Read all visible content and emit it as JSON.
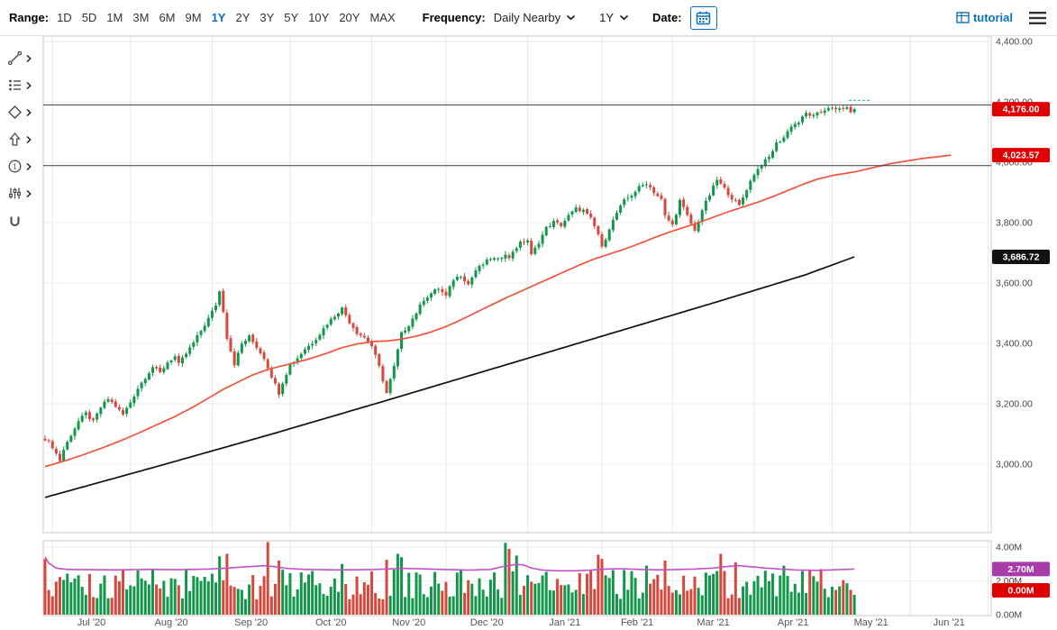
{
  "toolbar": {
    "range_label": "Range:",
    "ranges": [
      "1D",
      "5D",
      "1M",
      "3M",
      "6M",
      "9M",
      "1Y",
      "2Y",
      "3Y",
      "5Y",
      "10Y",
      "20Y",
      "MAX"
    ],
    "active_range": "1Y",
    "frequency_label": "Frequency:",
    "frequency_value": "Daily Nearby",
    "period_dropdown_value": "1Y",
    "date_label": "Date:",
    "brand_label": "tutorial",
    "accent_color": "#0a6ebd"
  },
  "drawing_tools": [
    {
      "icon": "trendline-icon"
    },
    {
      "icon": "study-list-icon"
    },
    {
      "icon": "shapes-icon"
    },
    {
      "icon": "arrow-icon"
    },
    {
      "icon": "number-annotation-icon"
    },
    {
      "icon": "sliders-icon"
    },
    {
      "icon": "magnet-icon"
    }
  ],
  "chart_data": {
    "type": "candlestick",
    "x_axis": {
      "labels": [
        "Jul '20",
        "Aug '20",
        "Sep '20",
        "Oct '20",
        "Nov '20",
        "Dec '20",
        "Jan '21",
        "Feb '21",
        "Mar '21",
        "Apr '21",
        "May '21",
        "Jun '21"
      ],
      "month_start_days": [
        2,
        23,
        45,
        66,
        88,
        108,
        130,
        150,
        169,
        191,
        212,
        233,
        254
      ],
      "total_days": 219
    },
    "price_axis": {
      "tick_labels": [
        "4,400.00",
        "4,200.00",
        "4,000.00",
        "3,800.00",
        "3,600.00",
        "3,400.00",
        "3,200.00",
        "3,000.00"
      ],
      "tick_values": [
        4400,
        4200,
        4000,
        3800,
        3600,
        3400,
        3200,
        3000
      ]
    },
    "volume_axis": {
      "tick_labels": [
        "4.00M",
        "2.00M",
        "0.00M"
      ],
      "tick_values": [
        4,
        2,
        0
      ]
    },
    "price_anchors": [
      [
        0,
        3085
      ],
      [
        2,
        3058
      ],
      [
        4,
        3012
      ],
      [
        5,
        3048
      ],
      [
        7,
        3098
      ],
      [
        9,
        3142
      ],
      [
        11,
        3168
      ],
      [
        13,
        3140
      ],
      [
        15,
        3188
      ],
      [
        17,
        3216
      ],
      [
        19,
        3192
      ],
      [
        21,
        3164
      ],
      [
        23,
        3205
      ],
      [
        25,
        3252
      ],
      [
        27,
        3288
      ],
      [
        29,
        3322
      ],
      [
        31,
        3302
      ],
      [
        33,
        3338
      ],
      [
        35,
        3356
      ],
      [
        36,
        3330
      ],
      [
        38,
        3366
      ],
      [
        40,
        3402
      ],
      [
        42,
        3442
      ],
      [
        44,
        3482
      ],
      [
        46,
        3528
      ],
      [
        47,
        3572
      ],
      [
        48,
        3508
      ],
      [
        49,
        3420
      ],
      [
        51,
        3332
      ],
      [
        53,
        3398
      ],
      [
        55,
        3422
      ],
      [
        57,
        3388
      ],
      [
        59,
        3352
      ],
      [
        61,
        3292
      ],
      [
        63,
        3236
      ],
      [
        64,
        3272
      ],
      [
        66,
        3330
      ],
      [
        68,
        3352
      ],
      [
        70,
        3382
      ],
      [
        72,
        3402
      ],
      [
        74,
        3432
      ],
      [
        76,
        3466
      ],
      [
        78,
        3492
      ],
      [
        80,
        3516
      ],
      [
        82,
        3472
      ],
      [
        84,
        3436
      ],
      [
        86,
        3420
      ],
      [
        88,
        3392
      ],
      [
        90,
        3322
      ],
      [
        92,
        3236
      ],
      [
        94,
        3322
      ],
      [
        96,
        3432
      ],
      [
        98,
        3462
      ],
      [
        100,
        3502
      ],
      [
        102,
        3546
      ],
      [
        104,
        3566
      ],
      [
        106,
        3582
      ],
      [
        108,
        3556
      ],
      [
        110,
        3612
      ],
      [
        112,
        3626
      ],
      [
        114,
        3596
      ],
      [
        116,
        3642
      ],
      [
        118,
        3662
      ],
      [
        120,
        3682
      ],
      [
        122,
        3676
      ],
      [
        124,
        3700
      ],
      [
        125,
        3680
      ],
      [
        126,
        3706
      ],
      [
        128,
        3732
      ],
      [
        130,
        3742
      ],
      [
        131,
        3692
      ],
      [
        133,
        3736
      ],
      [
        135,
        3782
      ],
      [
        137,
        3802
      ],
      [
        139,
        3792
      ],
      [
        141,
        3822
      ],
      [
        143,
        3846
      ],
      [
        145,
        3840
      ],
      [
        147,
        3812
      ],
      [
        149,
        3762
      ],
      [
        150,
        3716
      ],
      [
        152,
        3782
      ],
      [
        154,
        3832
      ],
      [
        156,
        3872
      ],
      [
        158,
        3892
      ],
      [
        160,
        3916
      ],
      [
        162,
        3932
      ],
      [
        164,
        3902
      ],
      [
        166,
        3876
      ],
      [
        167,
        3822
      ],
      [
        169,
        3792
      ],
      [
        171,
        3872
      ],
      [
        173,
        3822
      ],
      [
        175,
        3772
      ],
      [
        177,
        3842
      ],
      [
        179,
        3892
      ],
      [
        181,
        3942
      ],
      [
        183,
        3912
      ],
      [
        185,
        3882
      ],
      [
        187,
        3856
      ],
      [
        189,
        3912
      ],
      [
        191,
        3962
      ],
      [
        193,
        3992
      ],
      [
        195,
        4016
      ],
      [
        197,
        4062
      ],
      [
        199,
        4082
      ],
      [
        201,
        4122
      ],
      [
        203,
        4132
      ],
      [
        205,
        4162
      ],
      [
        207,
        4152
      ],
      [
        209,
        4166
      ],
      [
        211,
        4182
      ],
      [
        213,
        4172
      ],
      [
        215,
        4182
      ],
      [
        217,
        4170
      ],
      [
        218,
        4176
      ]
    ],
    "ma_fast": {
      "color": "#f3533a",
      "last_label": "4,023.57",
      "anchors": [
        [
          0,
          2992
        ],
        [
          5,
          3010
        ],
        [
          10,
          3030
        ],
        [
          15,
          3052
        ],
        [
          20,
          3076
        ],
        [
          25,
          3102
        ],
        [
          30,
          3130
        ],
        [
          35,
          3158
        ],
        [
          40,
          3190
        ],
        [
          45,
          3226
        ],
        [
          48,
          3248
        ],
        [
          52,
          3272
        ],
        [
          56,
          3296
        ],
        [
          60,
          3314
        ],
        [
          64,
          3326
        ],
        [
          68,
          3338
        ],
        [
          72,
          3352
        ],
        [
          76,
          3368
        ],
        [
          80,
          3386
        ],
        [
          84,
          3398
        ],
        [
          88,
          3406
        ],
        [
          92,
          3408
        ],
        [
          96,
          3414
        ],
        [
          100,
          3424
        ],
        [
          104,
          3438
        ],
        [
          108,
          3456
        ],
        [
          112,
          3478
        ],
        [
          116,
          3502
        ],
        [
          120,
          3526
        ],
        [
          124,
          3550
        ],
        [
          128,
          3572
        ],
        [
          132,
          3594
        ],
        [
          136,
          3616
        ],
        [
          140,
          3638
        ],
        [
          144,
          3660
        ],
        [
          148,
          3680
        ],
        [
          152,
          3696
        ],
        [
          156,
          3712
        ],
        [
          160,
          3730
        ],
        [
          164,
          3750
        ],
        [
          168,
          3768
        ],
        [
          172,
          3784
        ],
        [
          176,
          3800
        ],
        [
          180,
          3818
        ],
        [
          184,
          3836
        ],
        [
          188,
          3852
        ],
        [
          192,
          3868
        ],
        [
          196,
          3886
        ],
        [
          200,
          3906
        ],
        [
          204,
          3926
        ],
        [
          208,
          3944
        ],
        [
          212,
          3956
        ],
        [
          218,
          3968
        ],
        [
          228,
          3996
        ],
        [
          236,
          4012
        ],
        [
          244,
          4023.57
        ]
      ],
      "draw_to_day": 244
    },
    "ma_slow": {
      "color": "#111111",
      "last_label": "3,686.72",
      "anchors": [
        [
          0,
          2890
        ],
        [
          30,
          2992
        ],
        [
          60,
          3096
        ],
        [
          90,
          3204
        ],
        [
          120,
          3314
        ],
        [
          150,
          3424
        ],
        [
          180,
          3534
        ],
        [
          205,
          3628
        ],
        [
          218,
          3686.72
        ]
      ],
      "draw_to_day": 218
    },
    "volume_avg": {
      "color": "#c44fc4",
      "last_label": "2.70M",
      "anchors": [
        [
          0,
          3.42
        ],
        [
          1,
          3.05
        ],
        [
          3,
          2.76
        ],
        [
          6,
          2.68
        ],
        [
          12,
          2.66
        ],
        [
          20,
          2.65
        ],
        [
          28,
          2.68
        ],
        [
          36,
          2.66
        ],
        [
          44,
          2.7
        ],
        [
          48,
          2.74
        ],
        [
          52,
          2.8
        ],
        [
          56,
          2.86
        ],
        [
          59,
          2.9
        ],
        [
          62,
          2.84
        ],
        [
          65,
          2.74
        ],
        [
          70,
          2.68
        ],
        [
          78,
          2.65
        ],
        [
          86,
          2.66
        ],
        [
          92,
          2.7
        ],
        [
          96,
          2.74
        ],
        [
          102,
          2.71
        ],
        [
          108,
          2.67
        ],
        [
          114,
          2.64
        ],
        [
          120,
          2.68
        ],
        [
          124,
          2.88
        ],
        [
          127,
          2.98
        ],
        [
          129,
          2.94
        ],
        [
          131,
          2.76
        ],
        [
          134,
          2.64
        ],
        [
          138,
          2.6
        ],
        [
          143,
          2.6
        ],
        [
          147,
          2.64
        ],
        [
          151,
          2.7
        ],
        [
          155,
          2.72
        ],
        [
          160,
          2.68
        ],
        [
          165,
          2.65
        ],
        [
          170,
          2.67
        ],
        [
          175,
          2.7
        ],
        [
          180,
          2.76
        ],
        [
          184,
          2.86
        ],
        [
          187,
          2.9
        ],
        [
          190,
          2.84
        ],
        [
          194,
          2.76
        ],
        [
          198,
          2.7
        ],
        [
          203,
          2.64
        ],
        [
          208,
          2.62
        ],
        [
          213,
          2.66
        ],
        [
          218,
          2.7
        ]
      ],
      "draw_to_day": 218
    },
    "volume_spikes": {
      "0": 3.3,
      "47": 3.45,
      "49": 3.6,
      "60": 4.3,
      "63": 3.2,
      "80": 3.0,
      "92": 3.25,
      "95": 3.6,
      "96": 3.4,
      "124": 4.25,
      "125": 3.9,
      "127": 3.5,
      "149": 3.55,
      "150": 3.3,
      "162": 2.9,
      "167": 3.2,
      "182": 3.6,
      "186": 3.1,
      "199": 2.9,
      "209": 2.7
    },
    "horizontal_lines": [
      4190,
      3989
    ],
    "high_marker_level": 4205,
    "price_badges": [
      {
        "label": "4,176.00",
        "at": 4176,
        "color": "#e00000",
        "name": "last-price-badge"
      },
      {
        "label": "4,023.57",
        "at": 4023.57,
        "color": "#e00000",
        "name": "ma-fast-value-badge"
      },
      {
        "label": "3,686.72",
        "at": 3686.72,
        "color": "#111111",
        "name": "ma-slow-value-badge"
      }
    ],
    "volume_badges": [
      {
        "label": "2.70M",
        "at": 2.7,
        "color": "#a83ca8",
        "name": "volume-avg-value-badge"
      },
      {
        "label": "0.00M",
        "at": 1.44,
        "color": "#e00000",
        "name": "volume-value-badge"
      }
    ],
    "colors": {
      "up": "#12964a",
      "down": "#d6473c"
    }
  }
}
